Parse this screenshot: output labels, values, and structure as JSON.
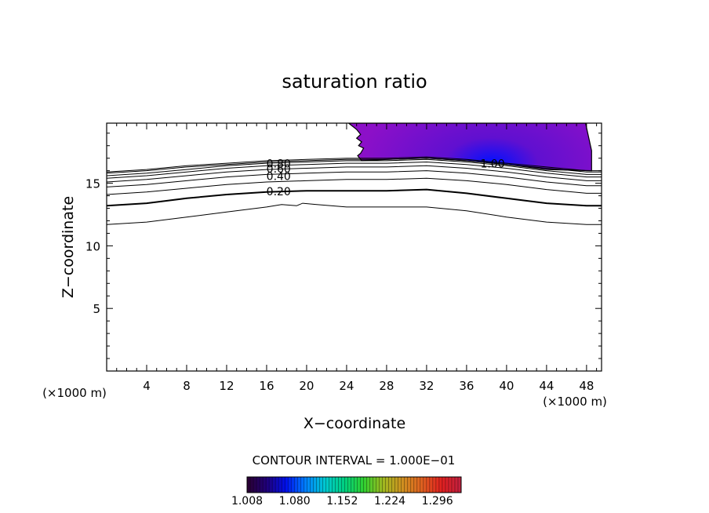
{
  "chart_data": {
    "type": "contour",
    "title": "saturation ratio",
    "xlabel": "X−coordinate",
    "ylabel": "Z−coordinate",
    "x_unit": "(×1000 m)",
    "z_unit": "(×1000 m)",
    "xlim": [
      0,
      49.5
    ],
    "ylim": [
      0,
      19.8
    ],
    "x_ticks": [
      4,
      8,
      12,
      16,
      20,
      24,
      28,
      32,
      36,
      40,
      44,
      48
    ],
    "y_ticks": [
      5,
      10,
      15
    ],
    "contour_interval_text": "CONTOUR INTERVAL = 1.000E−01",
    "contour_labels": [
      {
        "text": "0.80",
        "x": 17.2,
        "z": 16.5
      },
      {
        "text": "0.60",
        "x": 17.2,
        "z": 16.1
      },
      {
        "text": "0.40",
        "x": 17.2,
        "z": 15.5
      },
      {
        "text": "0.20",
        "x": 17.2,
        "z": 14.3
      },
      {
        "text": "1.00",
        "x": 38.6,
        "z": 16.5
      }
    ],
    "contour_levels": [
      {
        "level": 0.0,
        "bold": false,
        "points": [
          [
            0,
            11.7
          ],
          [
            4,
            11.9
          ],
          [
            8,
            12.3
          ],
          [
            12,
            12.7
          ],
          [
            16,
            13.1
          ],
          [
            17.5,
            13.3
          ],
          [
            19,
            13.2
          ],
          [
            19.6,
            13.4
          ],
          [
            21,
            13.3
          ],
          [
            24,
            13.1
          ],
          [
            28,
            13.1
          ],
          [
            32,
            13.1
          ],
          [
            36,
            12.8
          ],
          [
            40,
            12.3
          ],
          [
            44,
            11.9
          ],
          [
            48,
            11.7
          ],
          [
            49.5,
            11.7
          ]
        ]
      },
      {
        "level": 0.1,
        "bold": true,
        "points": [
          [
            0,
            13.2
          ],
          [
            4,
            13.4
          ],
          [
            8,
            13.8
          ],
          [
            12,
            14.1
          ],
          [
            16,
            14.3
          ],
          [
            20,
            14.4
          ],
          [
            24,
            14.4
          ],
          [
            28,
            14.4
          ],
          [
            32,
            14.5
          ],
          [
            36,
            14.2
          ],
          [
            40,
            13.8
          ],
          [
            44,
            13.4
          ],
          [
            48,
            13.2
          ],
          [
            49.5,
            13.2
          ]
        ]
      },
      {
        "level": 0.2,
        "bold": false,
        "points": [
          [
            0,
            14.1
          ],
          [
            4,
            14.3
          ],
          [
            8,
            14.6
          ],
          [
            12,
            14.9
          ],
          [
            16,
            15.1
          ],
          [
            20,
            15.2
          ],
          [
            24,
            15.3
          ],
          [
            28,
            15.3
          ],
          [
            32,
            15.4
          ],
          [
            36,
            15.2
          ],
          [
            40,
            14.9
          ],
          [
            44,
            14.5
          ],
          [
            48,
            14.2
          ],
          [
            49.5,
            14.2
          ]
        ]
      },
      {
        "level": 0.3,
        "bold": false,
        "points": [
          [
            0,
            14.7
          ],
          [
            4,
            14.9
          ],
          [
            8,
            15.2
          ],
          [
            12,
            15.5
          ],
          [
            16,
            15.7
          ],
          [
            20,
            15.8
          ],
          [
            24,
            15.9
          ],
          [
            28,
            15.9
          ],
          [
            32,
            16.0
          ],
          [
            36,
            15.8
          ],
          [
            40,
            15.5
          ],
          [
            44,
            15.1
          ],
          [
            48,
            14.8
          ],
          [
            49.5,
            14.8
          ]
        ]
      },
      {
        "level": 0.4,
        "bold": false,
        "points": [
          [
            0,
            15.1
          ],
          [
            4,
            15.3
          ],
          [
            8,
            15.6
          ],
          [
            12,
            15.9
          ],
          [
            16,
            16.1
          ],
          [
            20,
            16.2
          ],
          [
            24,
            16.3
          ],
          [
            28,
            16.3
          ],
          [
            32,
            16.4
          ],
          [
            36,
            16.2
          ],
          [
            40,
            15.9
          ],
          [
            44,
            15.5
          ],
          [
            48,
            15.2
          ],
          [
            49.5,
            15.2
          ]
        ]
      },
      {
        "level": 0.5,
        "bold": false,
        "points": [
          [
            0,
            15.4
          ],
          [
            4,
            15.6
          ],
          [
            8,
            15.9
          ],
          [
            12,
            16.2
          ],
          [
            16,
            16.4
          ],
          [
            20,
            16.5
          ],
          [
            24,
            16.6
          ],
          [
            28,
            16.6
          ],
          [
            32,
            16.7
          ],
          [
            36,
            16.5
          ],
          [
            40,
            16.2
          ],
          [
            44,
            15.8
          ],
          [
            48,
            15.5
          ],
          [
            49.5,
            15.5
          ]
        ]
      },
      {
        "level": 0.6,
        "bold": false,
        "points": [
          [
            0,
            15.6
          ],
          [
            4,
            15.8
          ],
          [
            8,
            16.1
          ],
          [
            12,
            16.4
          ],
          [
            16,
            16.6
          ],
          [
            20,
            16.7
          ],
          [
            24,
            16.8
          ],
          [
            28,
            16.8
          ],
          [
            32,
            16.9
          ],
          [
            36,
            16.7
          ],
          [
            40,
            16.4
          ],
          [
            44,
            16.0
          ],
          [
            48,
            15.7
          ],
          [
            49.5,
            15.7
          ]
        ]
      },
      {
        "level": 0.7,
        "bold": false,
        "points": [
          [
            0,
            15.8
          ],
          [
            4,
            16.0
          ],
          [
            8,
            16.3
          ],
          [
            12,
            16.5
          ],
          [
            16,
            16.7
          ],
          [
            20,
            16.8
          ],
          [
            24,
            16.9
          ],
          [
            28,
            16.9
          ],
          [
            32,
            17.0
          ],
          [
            36,
            16.8
          ],
          [
            40,
            16.5
          ],
          [
            44,
            16.2
          ],
          [
            48,
            15.9
          ],
          [
            49.5,
            15.9
          ]
        ]
      },
      {
        "level": 0.8,
        "bold": false,
        "points": [
          [
            0,
            15.9
          ],
          [
            4,
            16.1
          ],
          [
            8,
            16.4
          ],
          [
            12,
            16.6
          ],
          [
            16,
            16.8
          ],
          [
            20,
            16.9
          ],
          [
            24,
            17.0
          ],
          [
            28,
            17.0
          ],
          [
            32,
            17.1
          ],
          [
            36,
            16.9
          ],
          [
            40,
            16.6
          ],
          [
            44,
            16.3
          ],
          [
            48,
            16.0
          ],
          [
            49.5,
            16.0
          ]
        ]
      }
    ],
    "supersaturated_region": {
      "outline": [
        [
          24.2,
          19.8
        ],
        [
          25.0,
          19.3
        ],
        [
          25.4,
          18.9
        ],
        [
          25.0,
          18.6
        ],
        [
          25.5,
          18.3
        ],
        [
          25.2,
          18.0
        ],
        [
          25.7,
          17.8
        ],
        [
          25.4,
          17.4
        ],
        [
          25.1,
          17.2
        ],
        [
          25.5,
          16.8
        ],
        [
          28,
          16.9
        ],
        [
          32,
          17.0
        ],
        [
          36,
          16.8
        ],
        [
          40,
          16.5
        ],
        [
          44,
          16.1
        ],
        [
          48.5,
          16.0
        ],
        [
          48.5,
          17.6
        ],
        [
          47.9,
          19.8
        ]
      ],
      "core": [
        38.5,
        16.6
      ]
    },
    "colorbar": {
      "min": 1.008,
      "max": 1.332,
      "tick_labels": [
        "1.008",
        "1.080",
        "1.152",
        "1.224",
        "1.296"
      ],
      "colors": [
        "#2a0030",
        "#20007a",
        "#0010ee",
        "#0080ff",
        "#00c8d0",
        "#00d080",
        "#30d030",
        "#a0b820",
        "#d09020",
        "#e06020",
        "#e02020",
        "#c02040"
      ]
    },
    "fill_colors": {
      "outer": "#8c10c8",
      "inner": "#6010d0",
      "core": "#0010ff"
    },
    "grid": false,
    "legend": "none"
  }
}
